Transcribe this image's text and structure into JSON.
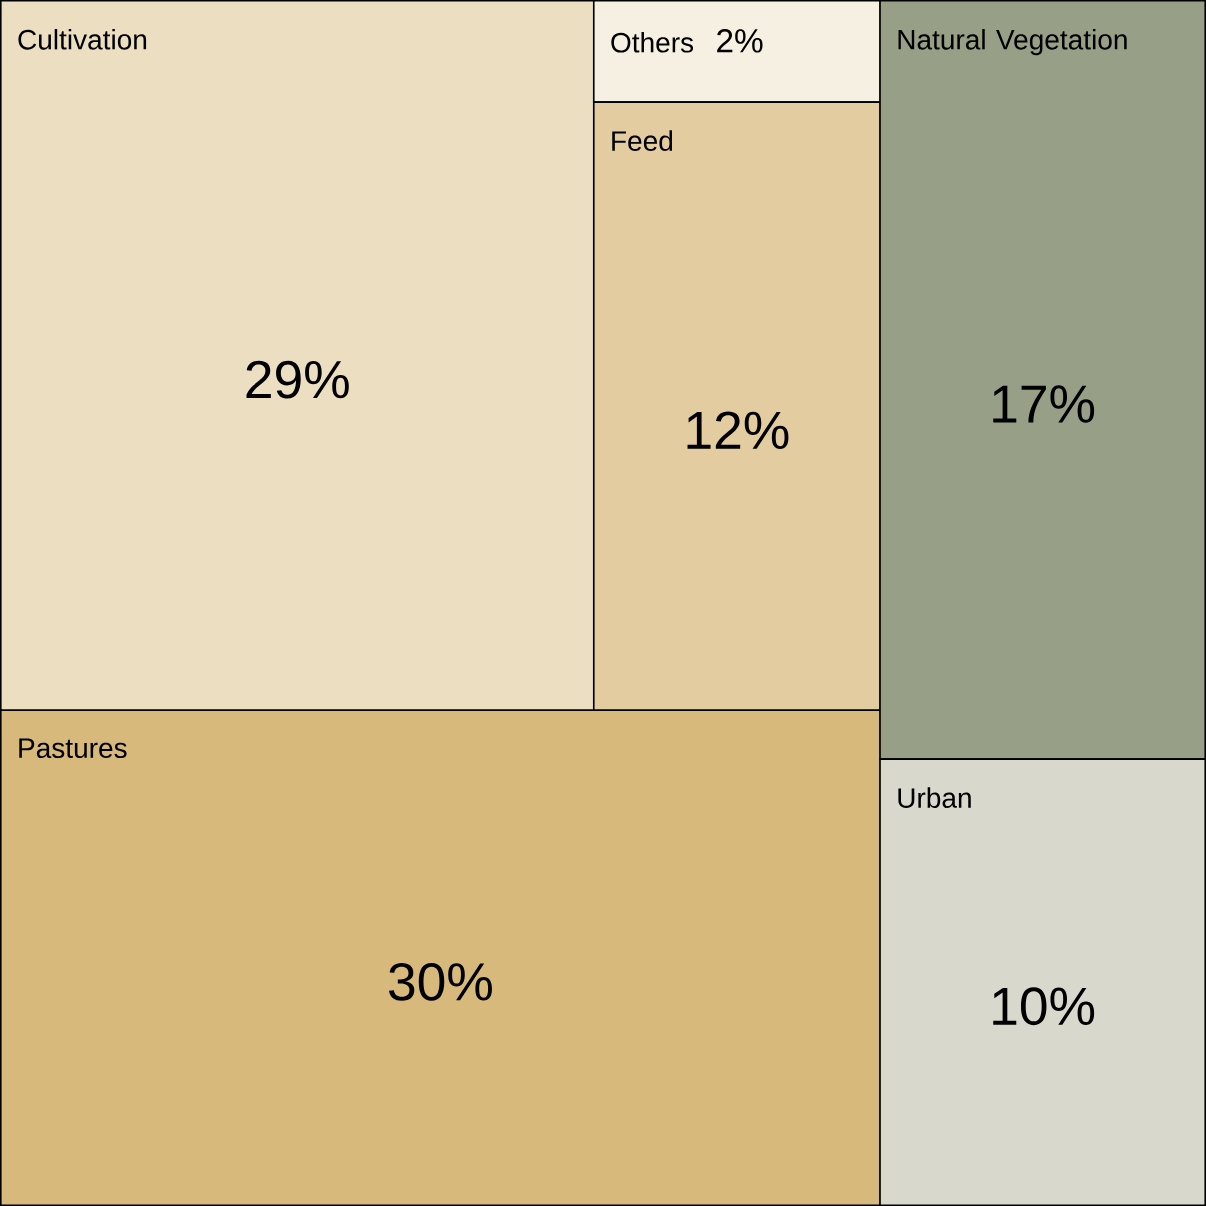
{
  "chart_data": {
    "type": "other",
    "categories": [
      "Cultivation",
      "Others",
      "Feed",
      "Pastures",
      "Natural Vegetation",
      "Urban"
    ],
    "values": [
      29,
      2,
      12,
      30,
      17,
      10
    ],
    "value_labels": [
      "29%",
      "2%",
      "12%",
      "30%",
      "17%",
      "10%"
    ],
    "colors": [
      "#ecdfc1",
      "#f6f0e2",
      "#e3cca0",
      "#d6b97b",
      "#97a087",
      "#d9d8cd"
    ]
  }
}
